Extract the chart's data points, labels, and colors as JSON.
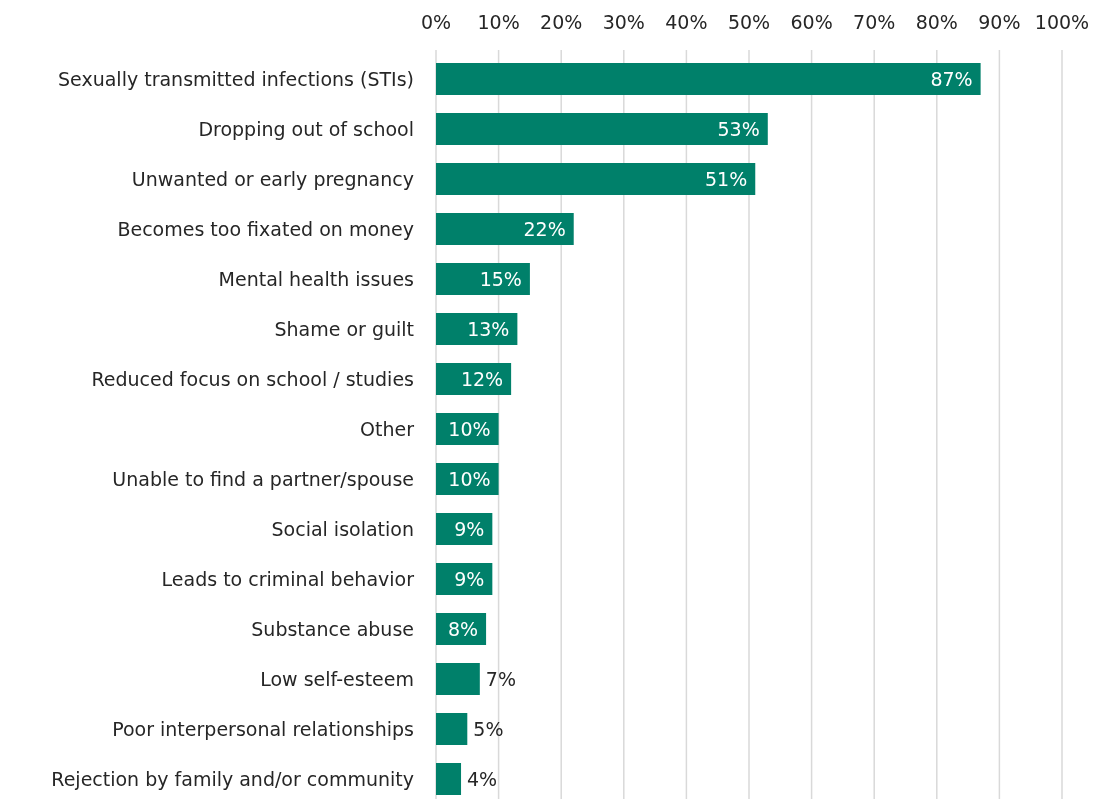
{
  "chart_data": {
    "type": "bar",
    "orientation": "horizontal",
    "categories": [
      "Sexually transmitted infections (STIs)",
      "Dropping out of school",
      "Unwanted or early pregnancy",
      "Becomes too fixated on money",
      "Mental health issues",
      "Shame or guilt",
      "Reduced focus on school / studies",
      "Other",
      "Unable to find a partner/spouse",
      "Social isolation",
      "Leads to criminal behavior",
      "Substance abuse",
      "Low self-esteem",
      "Poor interpersonal relationships",
      "Rejection by family and/or community"
    ],
    "values": [
      87,
      53,
      51,
      22,
      15,
      13,
      12,
      10,
      10,
      9,
      9,
      8,
      7,
      5,
      4
    ],
    "value_labels": [
      "87%",
      "53%",
      "51%",
      "22%",
      "15%",
      "13%",
      "12%",
      "10%",
      "10%",
      "9%",
      "9%",
      "8%",
      "7%",
      "5%",
      "4%"
    ],
    "color": "#00806a",
    "xlim": [
      0,
      100
    ],
    "xticks": [
      {
        "value": 0,
        "label": "0%"
      },
      {
        "value": 10,
        "label": "10%"
      },
      {
        "value": 20,
        "label": "20%"
      },
      {
        "value": 30,
        "label": "30%"
      },
      {
        "value": 40,
        "label": "40%"
      },
      {
        "value": 50,
        "label": "50%"
      },
      {
        "value": 60,
        "label": "60%"
      },
      {
        "value": 70,
        "label": "70%"
      },
      {
        "value": 80,
        "label": "80%"
      },
      {
        "value": 90,
        "label": "90%"
      },
      {
        "value": 100,
        "label": "100%"
      }
    ],
    "grid": "x"
  }
}
